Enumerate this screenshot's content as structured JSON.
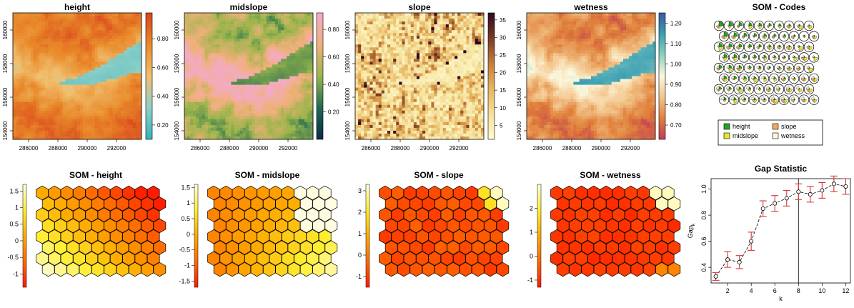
{
  "colors": {
    "terrain": [
      "#35b1bd",
      "#8fd0c8",
      "#f0c070",
      "#e98a2a",
      "#d9441c"
    ],
    "midslope": [
      "#0d2a48",
      "#1f6b55",
      "#9bb54a",
      "#f0b07a",
      "#f3aac8"
    ],
    "slope": [
      "#fefbd0",
      "#f5df9a",
      "#e7b65f",
      "#c47e3b",
      "#7a3b24",
      "#2c0a1f"
    ],
    "wetness": [
      "#c13b58",
      "#e0803a",
      "#f3c48a",
      "#fbf8dd",
      "#8fd0c0",
      "#3a9eb3",
      "#3a57a5"
    ],
    "heatmap": [
      "#ff1a00",
      "#ff6a00",
      "#ffaa00",
      "#ffee30",
      "#fffde0"
    ],
    "seg": [
      "#21a521",
      "#e6e62e",
      "#f4a95e",
      "#fff6dc"
    ],
    "gap_line": "#000000",
    "gap_err": "#d23838"
  },
  "chart_data": [
    {
      "type": "heatmap",
      "title": "height",
      "xticks": [
        "286000",
        "288000",
        "290000",
        "292000"
      ],
      "yticks": [
        "154000",
        "156000",
        "158000",
        "160000"
      ],
      "legend_ticks": [
        "0.20",
        "0.40",
        "0.60",
        "0.80"
      ],
      "legend_range": [
        0.1,
        0.98
      ],
      "palette": "terrain"
    },
    {
      "type": "heatmap",
      "title": "midslope",
      "xticks": [
        "286000",
        "288000",
        "290000",
        "292000"
      ],
      "yticks": [
        "154000",
        "156000",
        "158000",
        "160000"
      ],
      "legend_ticks": [
        "0.20",
        "0.40",
        "0.60",
        "0.80"
      ],
      "legend_range": [
        0.0,
        0.92
      ],
      "palette": "midslope"
    },
    {
      "type": "heatmap",
      "title": "slope",
      "xticks": [
        "286000",
        "288000",
        "290000",
        "292000"
      ],
      "yticks": [
        "154000",
        "156000",
        "158000",
        "160000"
      ],
      "legend_ticks": [
        "5",
        "10",
        "15",
        "20",
        "25",
        "30",
        "35"
      ],
      "legend_range": [
        1,
        37
      ],
      "palette": "slope"
    },
    {
      "type": "heatmap",
      "title": "wetness",
      "xticks": [
        "286000",
        "288000",
        "290000",
        "292000"
      ],
      "yticks": [
        "154000",
        "156000",
        "158000",
        "160000"
      ],
      "legend_ticks": [
        "0.70",
        "0.80",
        "0.90",
        "1.00",
        "1.10",
        "1.20"
      ],
      "legend_range": [
        0.63,
        1.25
      ],
      "palette": "wetness"
    },
    {
      "type": "other",
      "title": "SOM - Codes",
      "legend": [
        "height",
        "midslope",
        "slope",
        "wetness"
      ],
      "grid": [
        10,
        8
      ]
    },
    {
      "type": "heatmap",
      "title": "SOM - height",
      "legend_ticks": [
        "-1",
        "-0.5",
        "0",
        "0.5",
        "1",
        "1.5"
      ],
      "legend_range": [
        -1.4,
        1.7
      ],
      "grid": [
        10,
        8
      ]
    },
    {
      "type": "heatmap",
      "title": "SOM - midslope",
      "legend_ticks": [
        "-1.5",
        "-1",
        "-0.5",
        "0",
        "0.5",
        "1",
        "1.5"
      ],
      "legend_range": [
        -1.7,
        1.6
      ],
      "grid": [
        10,
        8
      ]
    },
    {
      "type": "heatmap",
      "title": "SOM - slope",
      "legend_ticks": [
        "-1",
        "0",
        "1",
        "2",
        "3"
      ],
      "legend_range": [
        -1.5,
        3.3
      ],
      "grid": [
        10,
        8
      ]
    },
    {
      "type": "heatmap",
      "title": "SOM - wetness",
      "legend_ticks": [
        "-1",
        "0",
        "1",
        "2"
      ],
      "legend_range": [
        -1.3,
        3.0
      ],
      "grid": [
        10,
        8
      ]
    },
    {
      "type": "scatter",
      "title": "Gap Statistic",
      "xlabel": "k",
      "ylabel": "Gap",
      "ylabel_sub": "k",
      "x": [
        1,
        2,
        3,
        4,
        5,
        6,
        7,
        8,
        9,
        10,
        11,
        12
      ],
      "y": [
        0.33,
        0.46,
        0.44,
        0.6,
        0.85,
        0.89,
        0.93,
        0.98,
        0.96,
        0.99,
        1.04,
        1.02
      ],
      "err": [
        0.03,
        0.06,
        0.05,
        0.07,
        0.06,
        0.06,
        0.06,
        0.06,
        0.06,
        0.06,
        0.06,
        0.06
      ],
      "xlim": [
        0.6,
        12.4
      ],
      "ylim": [
        0.28,
        1.08
      ],
      "xticks": [
        "2",
        "4",
        "6",
        "8",
        "10",
        "12"
      ],
      "yticks": [
        "0.4",
        "0.6",
        "0.8",
        "1.0"
      ],
      "vline": 8
    }
  ]
}
